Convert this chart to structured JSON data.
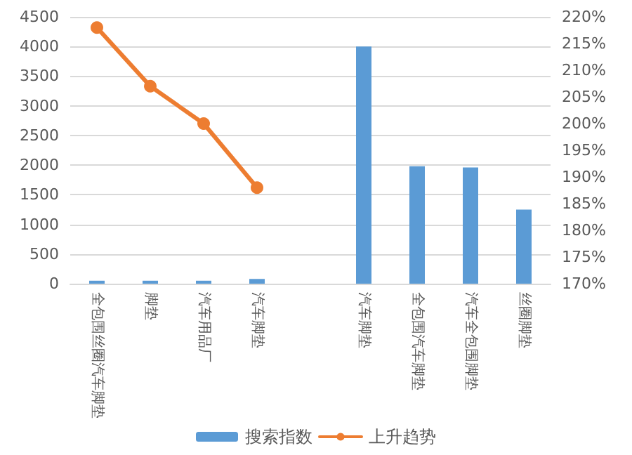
{
  "chart_data": {
    "type": "bar",
    "categories": [
      "全包围丝圈汽车脚垫",
      "脚垫",
      "汽车用品厂",
      "汽车脚垫",
      null,
      "汽车脚垫",
      "全包围汽车脚垫",
      "汽车全包围脚垫",
      "丝圈脚垫"
    ],
    "series": [
      {
        "name": "搜索指数",
        "color": "#5b9bd5",
        "values": [
          50,
          50,
          50,
          80,
          null,
          4000,
          1980,
          1960,
          1250
        ]
      },
      {
        "name": "上升趋势",
        "type": "line",
        "axis": "y2",
        "color": "#ed7d31",
        "marker": "circle",
        "values": [
          218,
          207,
          200,
          188,
          null,
          null,
          null,
          null,
          null
        ]
      }
    ],
    "ylim": [
      0,
      4500
    ],
    "yticks": [
      0,
      500,
      1000,
      1500,
      2000,
      2500,
      3000,
      3500,
      4000,
      4500
    ],
    "y2lim": [
      170,
      220
    ],
    "y2ticks": [
      {
        "value": 170,
        "label": "170%"
      },
      {
        "value": 175,
        "label": "175%"
      },
      {
        "value": 180,
        "label": "180%"
      },
      {
        "value": 185,
        "label": "185%"
      },
      {
        "value": 190,
        "label": "190%"
      },
      {
        "value": 195,
        "label": "195%"
      },
      {
        "value": 200,
        "label": "200%"
      },
      {
        "value": 205,
        "label": "205%"
      },
      {
        "value": 210,
        "label": "210%"
      },
      {
        "value": 215,
        "label": "215%"
      },
      {
        "value": 220,
        "label": "220%"
      }
    ],
    "grid": "y",
    "legend": "bottom"
  }
}
